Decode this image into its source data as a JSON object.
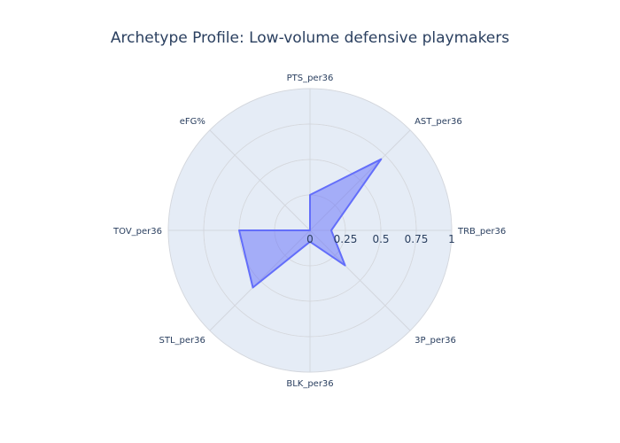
{
  "chart_data": {
    "type": "radar",
    "title": "Archetype Profile: Low-volume defensive playmakers",
    "axes": [
      "PTS_per36",
      "AST_per36",
      "TRB_per36",
      "3P_per36",
      "BLK_per36",
      "STL_per36",
      "TOV_per36",
      "eFG%"
    ],
    "values": [
      0.25,
      0.71,
      0.15,
      0.35,
      0.08,
      0.57,
      0.5,
      0.0
    ],
    "radial_range": [
      0,
      1
    ],
    "radial_ticks": [
      "0",
      "0.25",
      "0.5",
      "0.75",
      "1"
    ],
    "radial_tick_values": [
      0,
      0.25,
      0.5,
      0.75,
      1
    ],
    "grid": true,
    "colors": {
      "fill": "#636efa",
      "line": "#636efa",
      "polar_bg": "#e5ecf6",
      "grid": "#d3d7de",
      "text": "#2a3f5f"
    }
  }
}
